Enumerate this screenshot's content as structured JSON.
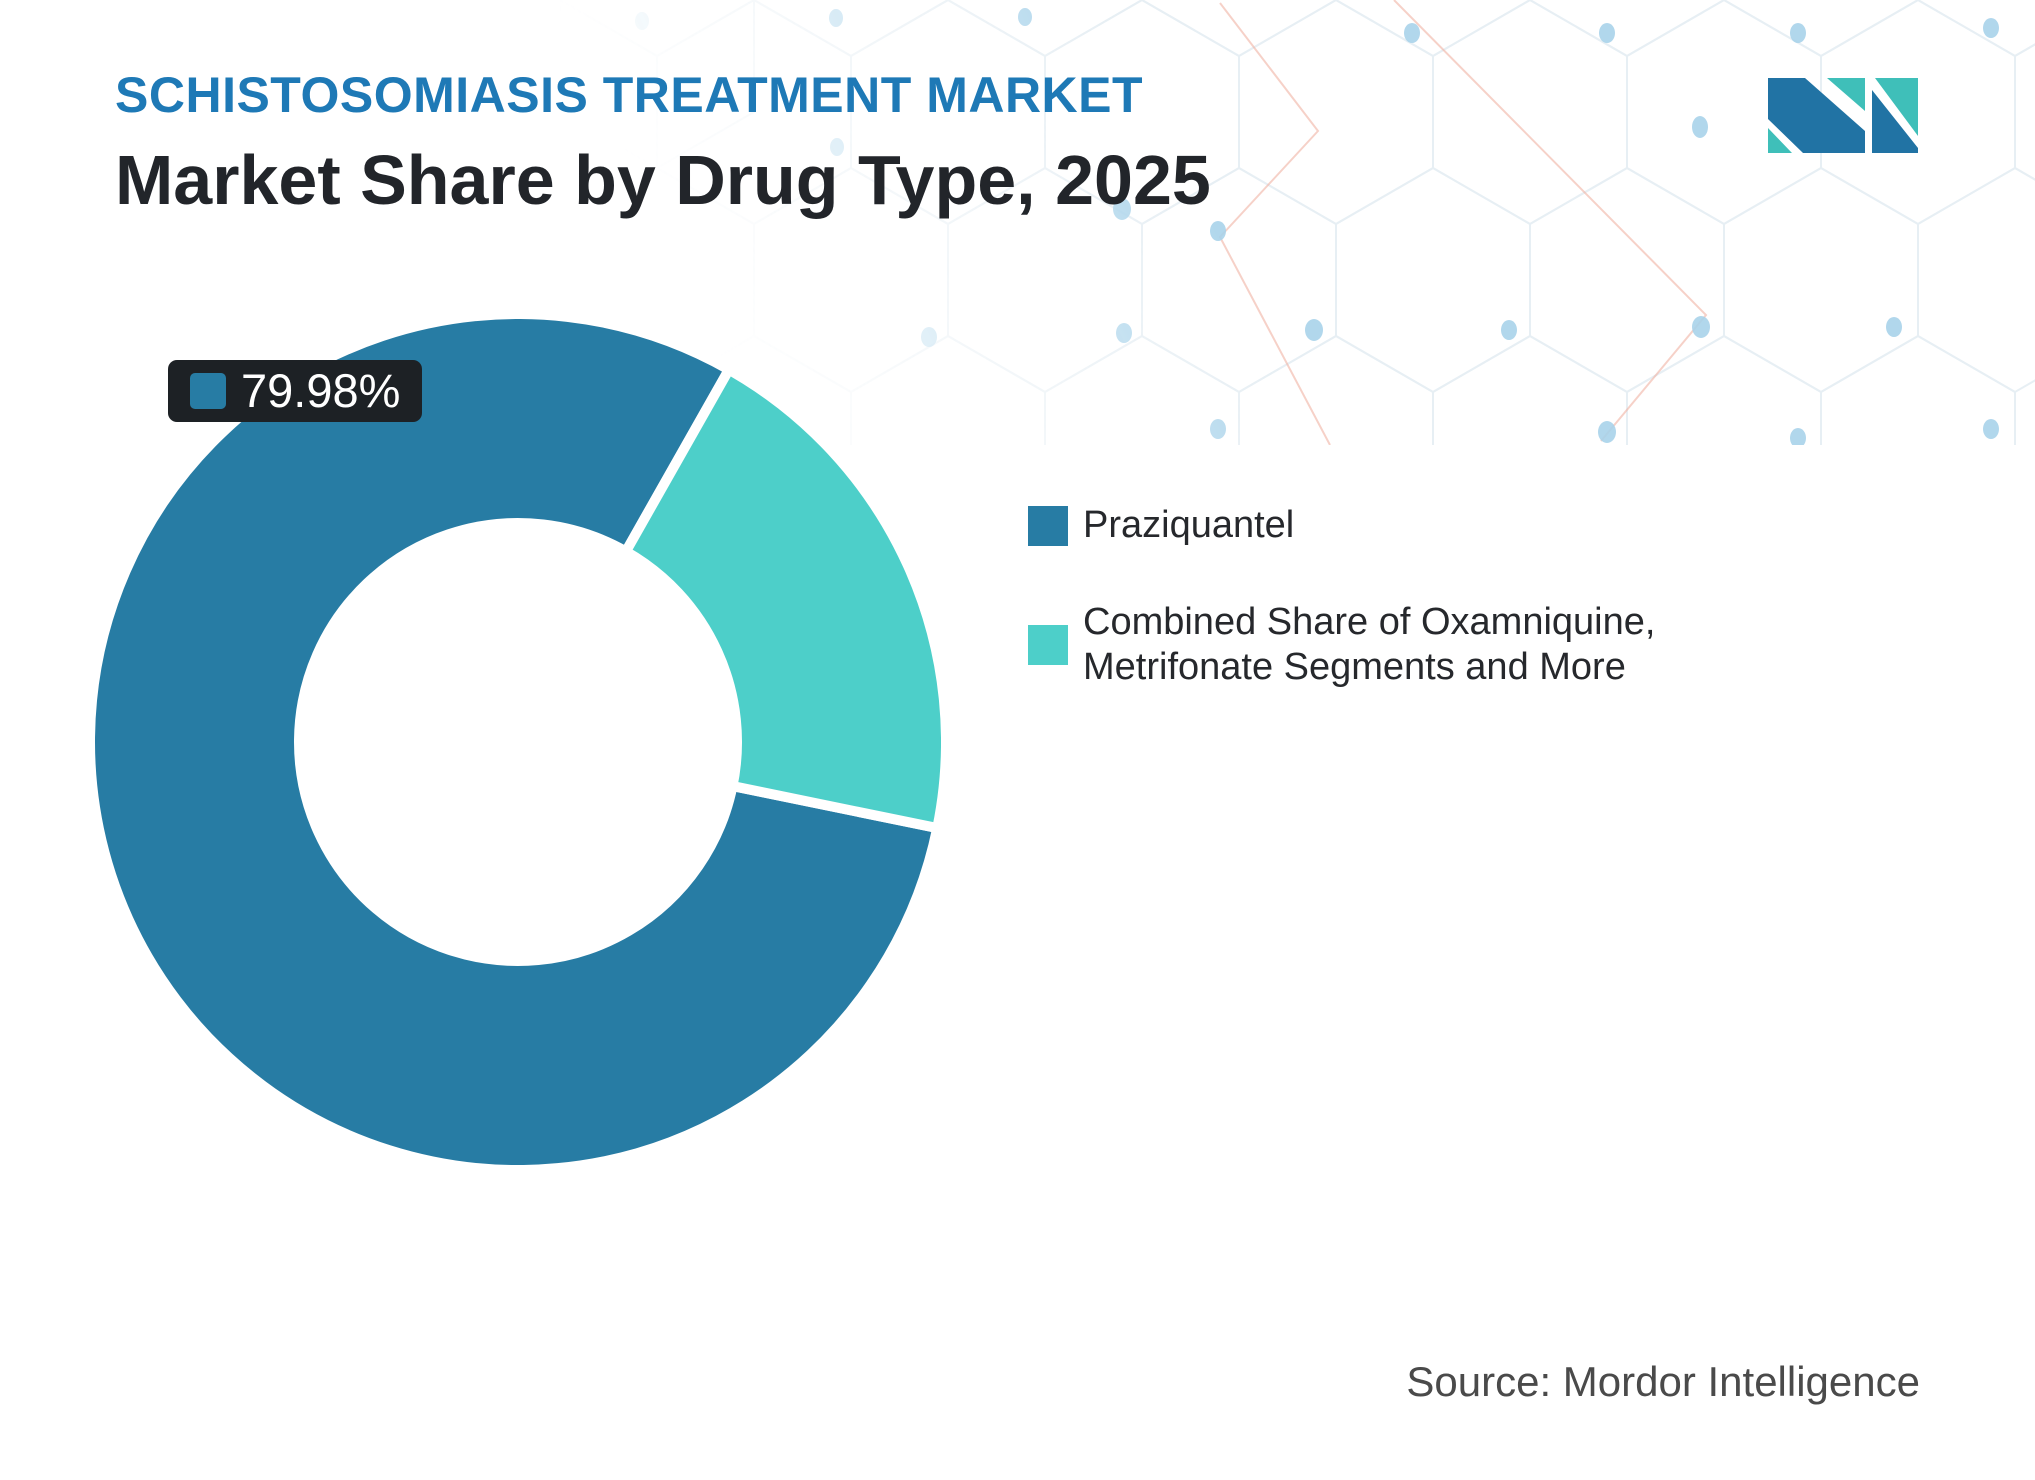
{
  "header": {
    "eyebrow": "SCHISTOSOMIASIS TREATMENT MARKET",
    "title": "Market Share by Drug Type, 2025"
  },
  "badge": {
    "value": "79.98%"
  },
  "legend": {
    "items": [
      {
        "label": "Praziquantel",
        "color": "#277CA4"
      },
      {
        "label": "Combined Share of Oxamniquine, Metrifonate Segments and More",
        "color": "#4DCFC9"
      }
    ]
  },
  "source": {
    "text": "Source: Mordor Intelligence"
  },
  "logo": {
    "alt": "mordor-intelligence-logo",
    "blue": "#2173A4",
    "teal": "#3FBFB9"
  },
  "colors": {
    "accent_blue": "#1E79B6",
    "text_dark": "#22252A",
    "badge_bg": "#1D2125",
    "pattern_line": "#D4E2EC",
    "pattern_dot": "#A9D3EA",
    "pattern_accent": "#F0B3A3"
  },
  "chart_data": {
    "type": "pie",
    "title": "Market Share by Drug Type, 2025",
    "legend_position": "right",
    "slices": [
      {
        "name": "Praziquantel",
        "value": 79.98,
        "display": "79.98%",
        "color": "#277CA4"
      },
      {
        "name": "Combined Share of Oxamniquine, Metrifonate Segments and More",
        "value": 20.02,
        "display": "20.02%",
        "color": "#4DCFC9"
      }
    ],
    "donut": {
      "inner_radius_ratio": 0.53,
      "start_angle_deg": 101.6,
      "separator_width": 10,
      "label_shown": "79.98%"
    }
  }
}
